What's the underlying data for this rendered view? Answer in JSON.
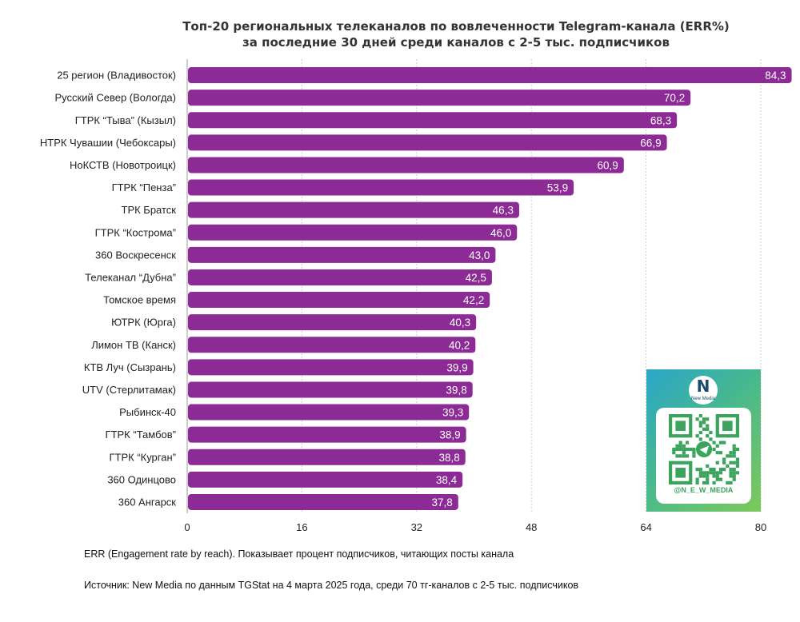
{
  "chart_data": {
    "type": "bar",
    "orientation": "horizontal",
    "title": "Топ-20 региональных телеканалов по вовлеченности Telegram-канала (ERR%)",
    "subtitle": "за последние 30 дней среди каналов с 2-5 тыс. подписчиков",
    "categories": [
      "25 регион (Владивосток)",
      "Русский Север (Вологда)",
      "ГТРК “Тыва” (Кызыл)",
      "НТРК Чувашии (Чебоксары)",
      "НоКСТВ (Новотроицк)",
      "ГТРК “Пенза”",
      "ТРК Братск",
      "ГТРК “Кострома”",
      "360 Воскресенск",
      "Телеканал “Дубна”",
      "Томское время",
      "ЮТРК (Юрга)",
      "Лимон ТВ (Канск)",
      "КТВ Луч (Сызрань)",
      "UTV (Стерлитамак)",
      "Рыбинск-40",
      "ГТРК “Тамбов”",
      "ГТРК “Курган”",
      "360 Одинцово",
      "360 Ангарск"
    ],
    "values": [
      84.3,
      70.2,
      68.3,
      66.9,
      60.9,
      53.9,
      46.3,
      46.0,
      43.0,
      42.5,
      42.2,
      40.3,
      40.2,
      39.9,
      39.8,
      39.3,
      38.9,
      38.8,
      38.4,
      37.8
    ],
    "value_labels": [
      "84,3",
      "70,2",
      "68,3",
      "66,9",
      "60,9",
      "53,9",
      "46,3",
      "46,0",
      "43,0",
      "42,5",
      "42,2",
      "40,3",
      "40,2",
      "39,9",
      "39,8",
      "39,3",
      "38,9",
      "38,8",
      "38,4",
      "37,8"
    ],
    "xticks": [
      0,
      16,
      32,
      48,
      64,
      80
    ],
    "xlim": [
      0,
      80
    ],
    "grid": true,
    "bar_color": "#8c2a96"
  },
  "notes": {
    "definition": "ERR (Engagement rate by reach). Показывает процент подписчиков, читающих посты канала",
    "source": "Источник: New Media по данным TGStat на 4 марта 2025 года, среди 70 тг-каналов с 2-5 тыс. подписчиков"
  },
  "qr_card": {
    "logo_glyph": "N",
    "logo_text": "New Media",
    "handle": "@N_E_W_MEDIA",
    "icon": "telegram-icon"
  }
}
